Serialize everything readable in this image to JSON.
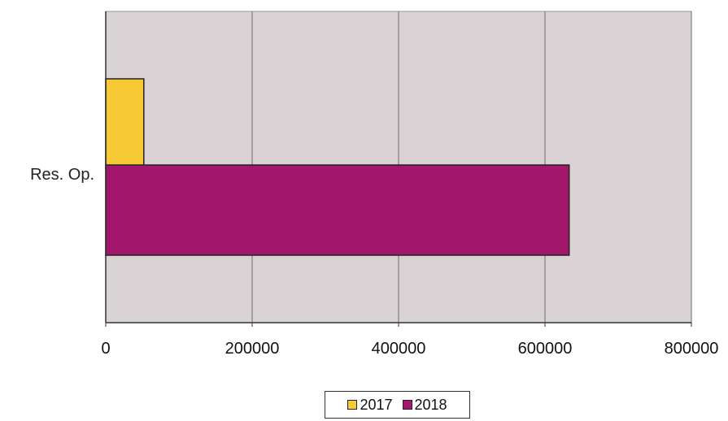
{
  "chart_data": {
    "type": "bar",
    "orientation": "horizontal",
    "categories": [
      "Res. Op."
    ],
    "series": [
      {
        "name": "2017",
        "values": [
          52000
        ],
        "color": "#f7c935"
      },
      {
        "name": "2018",
        "values": [
          633000
        ],
        "color": "#a3186c"
      }
    ],
    "xlim": [
      0,
      800000
    ],
    "xticks": [
      "0",
      "200000",
      "400000",
      "600000",
      "800000"
    ],
    "grid": true,
    "legend_position": "bottom",
    "plot_background": "#d9d3d6"
  }
}
